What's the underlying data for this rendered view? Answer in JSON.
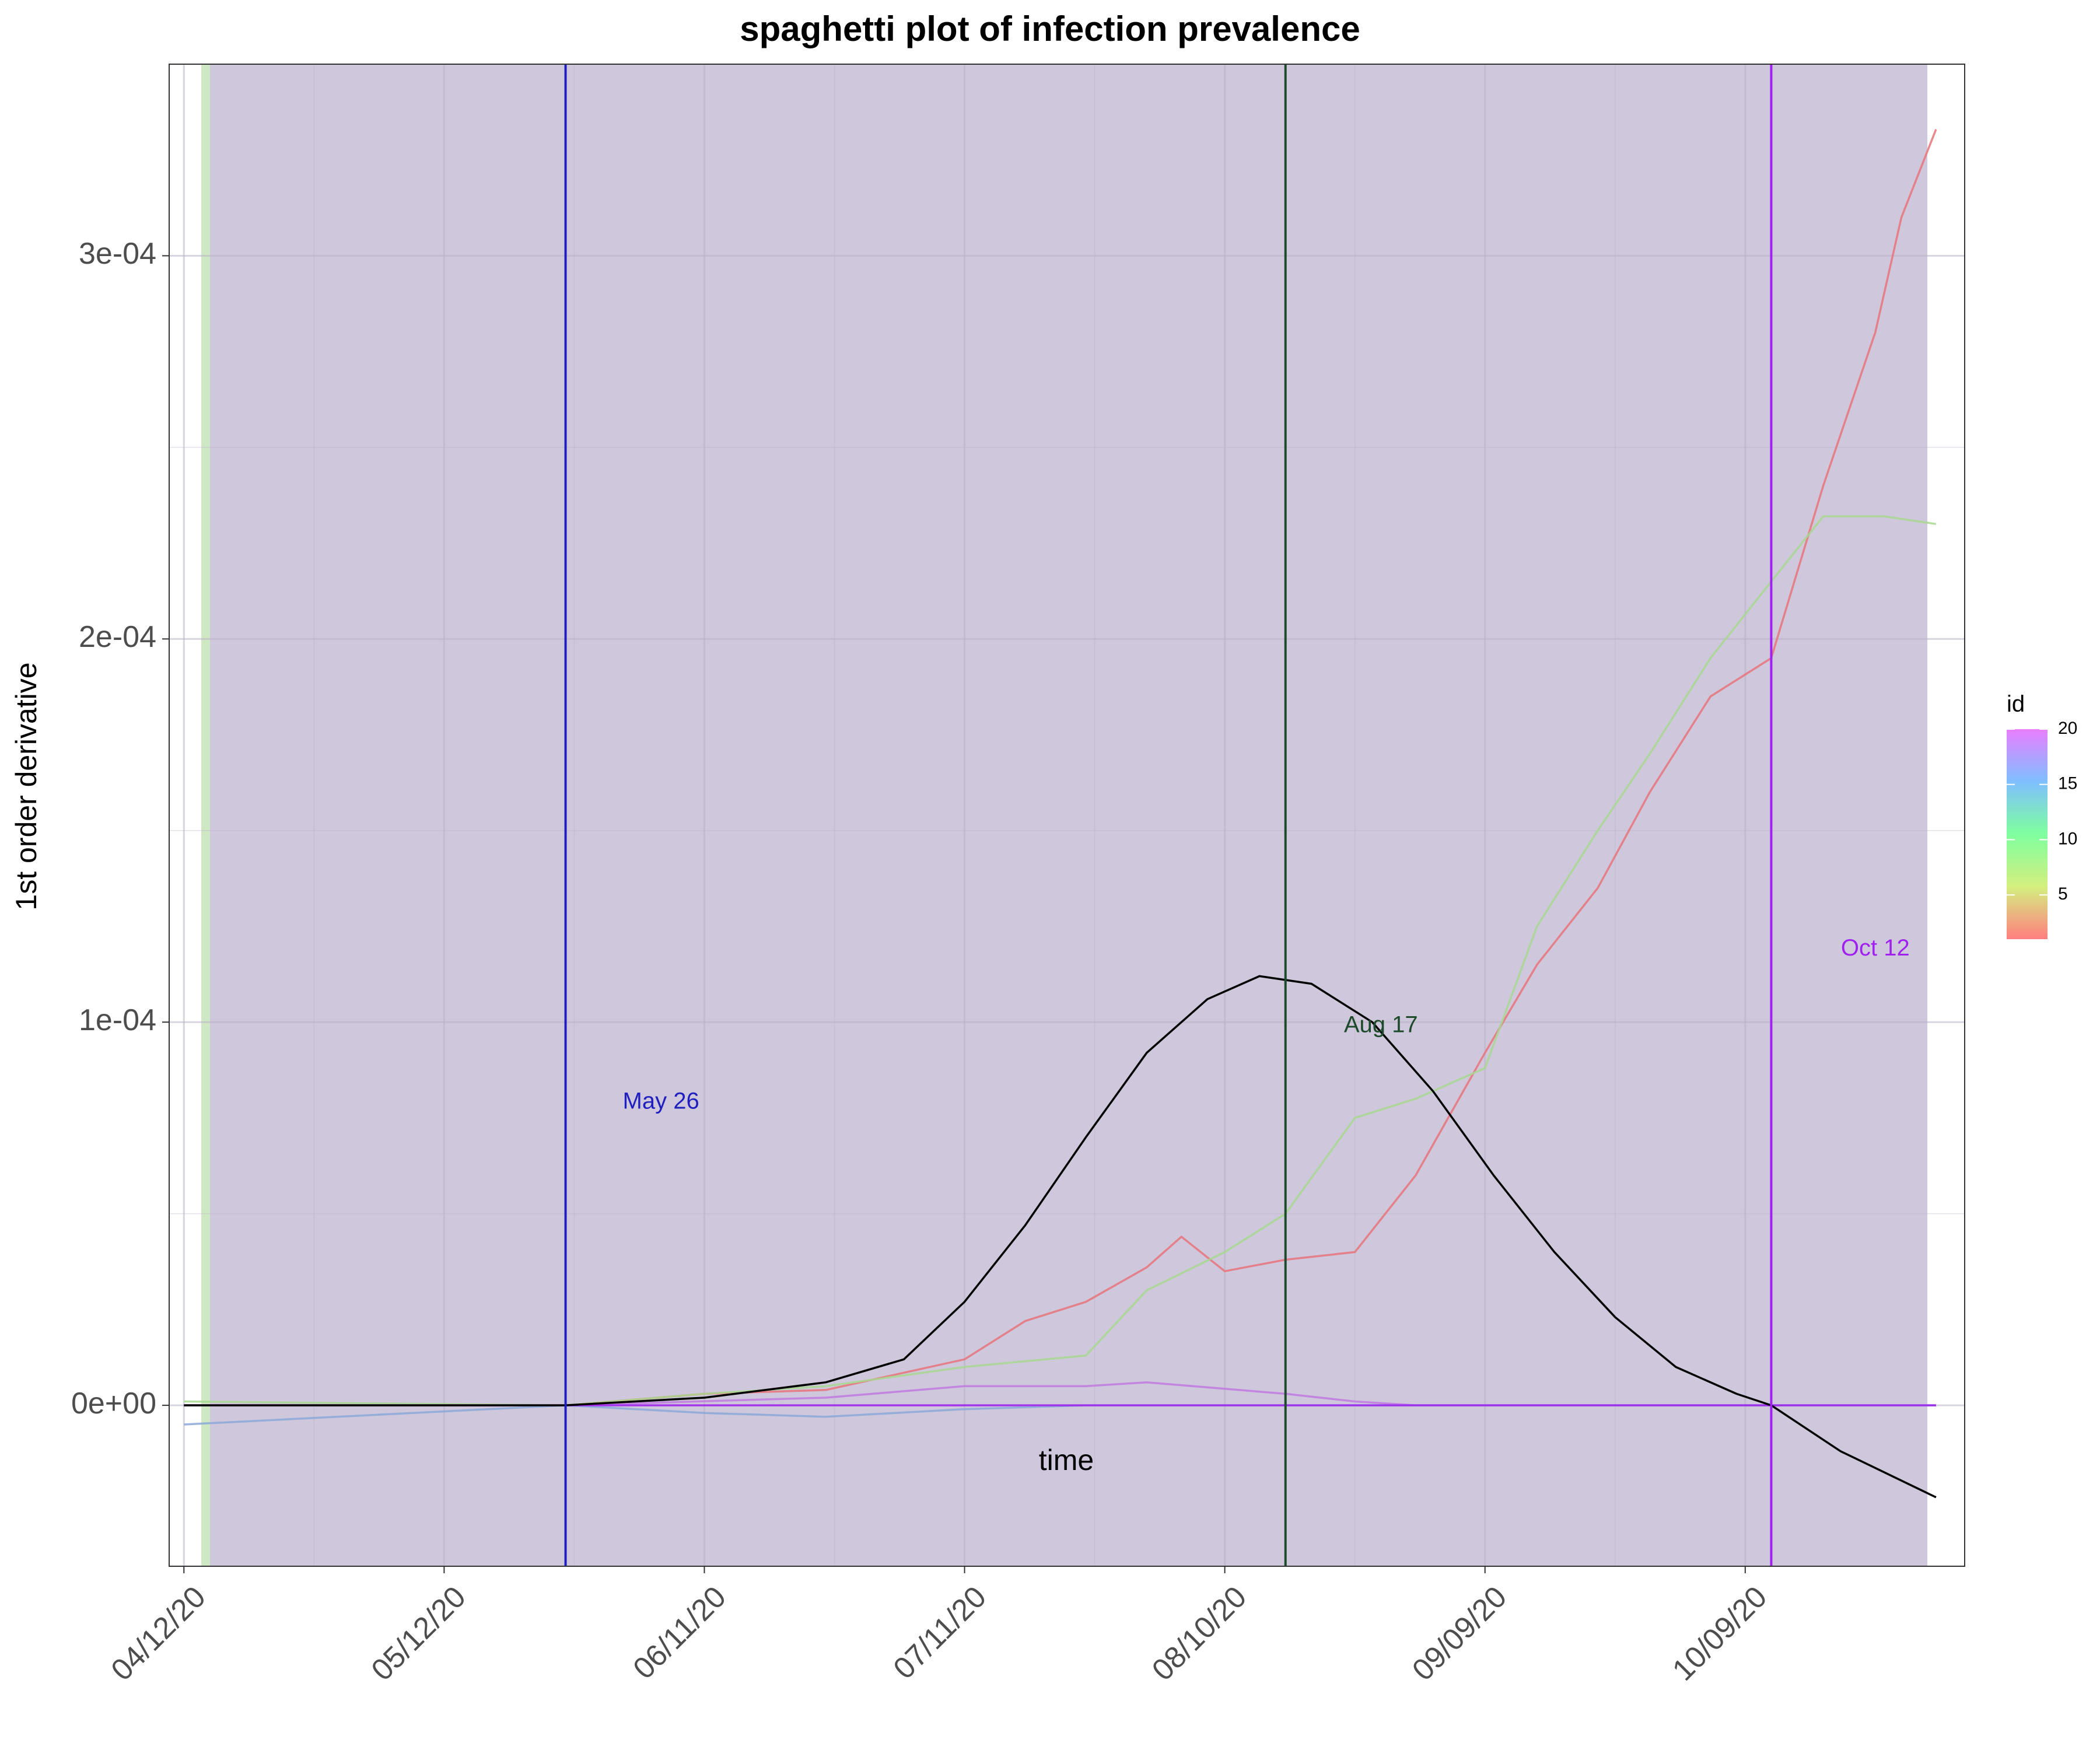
{
  "chart_data": {
    "type": "line",
    "title": "spaghetti plot of infection prevalence",
    "xlabel": "time",
    "ylabel": "1st order derivative",
    "x_domain": [
      "2020-04-12",
      "2020-10-31"
    ],
    "ylim": [
      -4.2e-05,
      0.00035
    ],
    "x_ticks": [
      {
        "date": "2020-04-12",
        "label": "04/12/20"
      },
      {
        "date": "2020-05-12",
        "label": "05/12/20"
      },
      {
        "date": "2020-06-11",
        "label": "06/11/20"
      },
      {
        "date": "2020-07-11",
        "label": "07/11/20"
      },
      {
        "date": "2020-08-10",
        "label": "08/10/20"
      },
      {
        "date": "2020-09-09",
        "label": "09/09/20"
      },
      {
        "date": "2020-10-09",
        "label": "10/09/20"
      }
    ],
    "y_ticks": [
      {
        "value": 0,
        "label": "0e+00"
      },
      {
        "value": 0.0001,
        "label": "1e-04"
      },
      {
        "value": 0.0002,
        "label": "2e-04"
      },
      {
        "value": 0.0003,
        "label": "3e-04"
      }
    ],
    "y_minor_ticks": [
      5e-05,
      0.00015,
      0.00025
    ],
    "grid": true,
    "shaded_regions": [
      {
        "start": "2020-04-14",
        "end": "2020-04-15",
        "color": "#cfe8c4"
      },
      {
        "start": "2020-04-15",
        "end": "2020-10-30",
        "color": "#cfc8dc"
      }
    ],
    "vertical_lines": [
      {
        "date": "2020-05-26",
        "label": "May 26",
        "color": "#1f1fbf",
        "label_date": "2020-06-06",
        "label_y": 7.9e-05
      },
      {
        "date": "2020-08-17",
        "label": "Aug 17",
        "color": "#1c4a2a",
        "label_date": "2020-08-28",
        "label_y": 9.9e-05
      },
      {
        "date": "2020-10-12",
        "label": "Oct 12",
        "color": "#a020f0",
        "label_date": "2020-10-24",
        "label_y": 0.000119
      }
    ],
    "series": [
      {
        "id": 1,
        "color": "#e8737a",
        "points": [
          [
            "2020-04-12",
            0
          ],
          [
            "2020-05-26",
            0
          ],
          [
            "2020-06-11",
            3e-06
          ],
          [
            "2020-06-25",
            4e-06
          ],
          [
            "2020-07-11",
            1.2e-05
          ],
          [
            "2020-07-18",
            2.2e-05
          ],
          [
            "2020-07-25",
            2.7e-05
          ],
          [
            "2020-08-01",
            3.6e-05
          ],
          [
            "2020-08-05",
            4.4e-05
          ],
          [
            "2020-08-10",
            3.5e-05
          ],
          [
            "2020-08-17",
            3.8e-05
          ],
          [
            "2020-08-25",
            4e-05
          ],
          [
            "2020-09-01",
            6e-05
          ],
          [
            "2020-09-09",
            9.2e-05
          ],
          [
            "2020-09-15",
            0.000115
          ],
          [
            "2020-09-22",
            0.000135
          ],
          [
            "2020-09-28",
            0.00016
          ],
          [
            "2020-10-05",
            0.000185
          ],
          [
            "2020-10-12",
            0.000195
          ],
          [
            "2020-10-18",
            0.00024
          ],
          [
            "2020-10-24",
            0.00028
          ],
          [
            "2020-10-27",
            0.00031
          ],
          [
            "2020-10-31",
            0.000333
          ]
        ]
      },
      {
        "id": 6,
        "color": "#a8d890",
        "points": [
          [
            "2020-04-12",
            1e-06
          ],
          [
            "2020-05-26",
            0
          ],
          [
            "2020-06-11",
            3e-06
          ],
          [
            "2020-06-25",
            5e-06
          ],
          [
            "2020-07-11",
            1e-05
          ],
          [
            "2020-07-25",
            1.3e-05
          ],
          [
            "2020-08-01",
            3e-05
          ],
          [
            "2020-08-10",
            4e-05
          ],
          [
            "2020-08-17",
            5e-05
          ],
          [
            "2020-08-25",
            7.5e-05
          ],
          [
            "2020-09-01",
            8e-05
          ],
          [
            "2020-09-09",
            8.8e-05
          ],
          [
            "2020-09-15",
            0.000125
          ],
          [
            "2020-09-22",
            0.00015
          ],
          [
            "2020-09-28",
            0.00017
          ],
          [
            "2020-10-05",
            0.000195
          ],
          [
            "2020-10-12",
            0.000215
          ],
          [
            "2020-10-18",
            0.000232
          ],
          [
            "2020-10-25",
            0.000232
          ],
          [
            "2020-10-31",
            0.00023
          ]
        ]
      },
      {
        "id": 18,
        "color": "#c07ae0",
        "points": [
          [
            "2020-04-12",
            0
          ],
          [
            "2020-05-26",
            0
          ],
          [
            "2020-06-25",
            2e-06
          ],
          [
            "2020-07-11",
            5e-06
          ],
          [
            "2020-07-25",
            5e-06
          ],
          [
            "2020-08-01",
            6e-06
          ],
          [
            "2020-08-17",
            3e-06
          ],
          [
            "2020-08-25",
            1e-06
          ],
          [
            "2020-09-01",
            0
          ],
          [
            "2020-10-31",
            0
          ]
        ]
      },
      {
        "id": 14,
        "color": "#8aa8d8",
        "points": [
          [
            "2020-04-12",
            -5e-06
          ],
          [
            "2020-05-26",
            0
          ],
          [
            "2020-06-11",
            -2e-06
          ],
          [
            "2020-06-25",
            -3e-06
          ],
          [
            "2020-07-11",
            -1e-06
          ],
          [
            "2020-07-25",
            0
          ],
          [
            "2020-10-31",
            0
          ]
        ]
      },
      {
        "id": 20,
        "color": "#a020f0",
        "points": [
          [
            "2020-04-12",
            0
          ],
          [
            "2020-10-31",
            0
          ]
        ]
      },
      {
        "id": "mean",
        "color": "#000000",
        "points": [
          [
            "2020-04-12",
            0
          ],
          [
            "2020-05-26",
            0
          ],
          [
            "2020-06-11",
            2e-06
          ],
          [
            "2020-06-25",
            6e-06
          ],
          [
            "2020-07-04",
            1.2e-05
          ],
          [
            "2020-07-11",
            2.7e-05
          ],
          [
            "2020-07-18",
            4.7e-05
          ],
          [
            "2020-07-25",
            7e-05
          ],
          [
            "2020-08-01",
            9.2e-05
          ],
          [
            "2020-08-08",
            0.000106
          ],
          [
            "2020-08-14",
            0.000112
          ],
          [
            "2020-08-20",
            0.00011
          ],
          [
            "2020-08-27",
            0.0001
          ],
          [
            "2020-09-03",
            8.2e-05
          ],
          [
            "2020-09-10",
            6e-05
          ],
          [
            "2020-09-17",
            4e-05
          ],
          [
            "2020-09-24",
            2.3e-05
          ],
          [
            "2020-10-01",
            1e-05
          ],
          [
            "2020-10-08",
            3e-06
          ],
          [
            "2020-10-12",
            0
          ],
          [
            "2020-10-20",
            -1.2e-05
          ],
          [
            "2020-10-31",
            -2.4e-05
          ]
        ]
      }
    ],
    "legend": {
      "title": "id",
      "position": "right",
      "labels": [
        {
          "value": 20,
          "label": "20"
        },
        {
          "value": 15,
          "label": "15"
        },
        {
          "value": 10,
          "label": "10"
        },
        {
          "value": 5,
          "label": "5"
        }
      ],
      "range": [
        1,
        20
      ],
      "gradient": [
        "#ff7f7f",
        "#d4ef7f",
        "#7fff9e",
        "#7fbfff",
        "#e87fff"
      ]
    }
  }
}
